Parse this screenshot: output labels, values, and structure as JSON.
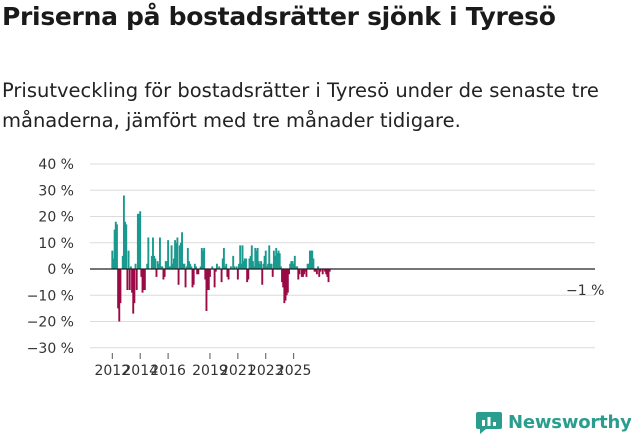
{
  "header": {
    "title": "Priserna på bostadsrätter sjönk i Tyresö",
    "subtitle": "Prisutveckling för bostadsrätter i Tyresö under de senaste tre månaderna, jämfört med tre månader tidigare."
  },
  "brand": {
    "name": "Newsworthy"
  },
  "colors": {
    "positive": "#1a9a8e",
    "negative": "#9b0b45",
    "grid": "#dcdcdc",
    "axis": "#222222"
  },
  "chart_data": {
    "type": "bar",
    "ylim": [
      -30,
      40
    ],
    "y_ticks": [
      40,
      30,
      20,
      10,
      0,
      -10,
      -20,
      -30
    ],
    "y_tick_labels": [
      "40 %",
      "30 %",
      "20 %",
      "10 %",
      "0 %",
      "−10 %",
      "−20 %",
      "−30 %"
    ],
    "x_ticks": [
      "2012",
      "2014",
      "2016",
      "2019",
      "2021",
      "2023",
      "2025"
    ],
    "annotation": "−1 %",
    "unit": "%",
    "x_start": "2012-01",
    "x_end": "2025-11",
    "values": [
      7,
      4,
      15,
      18,
      17,
      -15,
      -20,
      -13,
      0,
      5,
      28,
      18,
      17,
      -8,
      7,
      -8,
      1,
      -9,
      -17,
      -13,
      2,
      -8,
      21,
      21,
      22,
      -3,
      -9,
      -8,
      -8,
      0,
      2,
      12,
      0,
      0,
      5,
      12,
      5,
      4,
      -3,
      3,
      2,
      12,
      1,
      1,
      -4,
      -3,
      3,
      3,
      11,
      1,
      1,
      9,
      2,
      4,
      11,
      10,
      12,
      -6,
      9,
      10,
      14,
      2,
      2,
      -7,
      1,
      8,
      3,
      2,
      1,
      -7,
      -6,
      2,
      1,
      -2,
      -2,
      0,
      1,
      8,
      7,
      8,
      -4,
      -16,
      -8,
      -8,
      -3,
      0,
      1,
      0,
      -7,
      -1,
      2,
      0,
      1,
      0,
      -5,
      4,
      8,
      1,
      2,
      -3,
      -4,
      0,
      1,
      0,
      5,
      1,
      0,
      1,
      -4,
      2,
      9,
      2,
      9,
      3,
      4,
      4,
      -5,
      -4,
      4,
      5,
      9,
      3,
      1,
      8,
      7,
      8,
      3,
      2,
      3,
      -6,
      2,
      5,
      7,
      1,
      2,
      9,
      2,
      2,
      -3,
      7,
      5,
      8,
      6,
      7,
      6,
      1,
      -5,
      -7,
      -13,
      -12,
      -10,
      -9,
      -2,
      2,
      3,
      3,
      2,
      5,
      1,
      1,
      -4,
      -2,
      0,
      -3,
      -3,
      -2,
      -1,
      -3,
      2,
      2,
      7,
      7,
      7,
      4,
      -1,
      -1,
      -2,
      1,
      -3,
      -1,
      0,
      -2,
      0,
      -1,
      -2,
      -3,
      -5,
      -1
    ]
  }
}
